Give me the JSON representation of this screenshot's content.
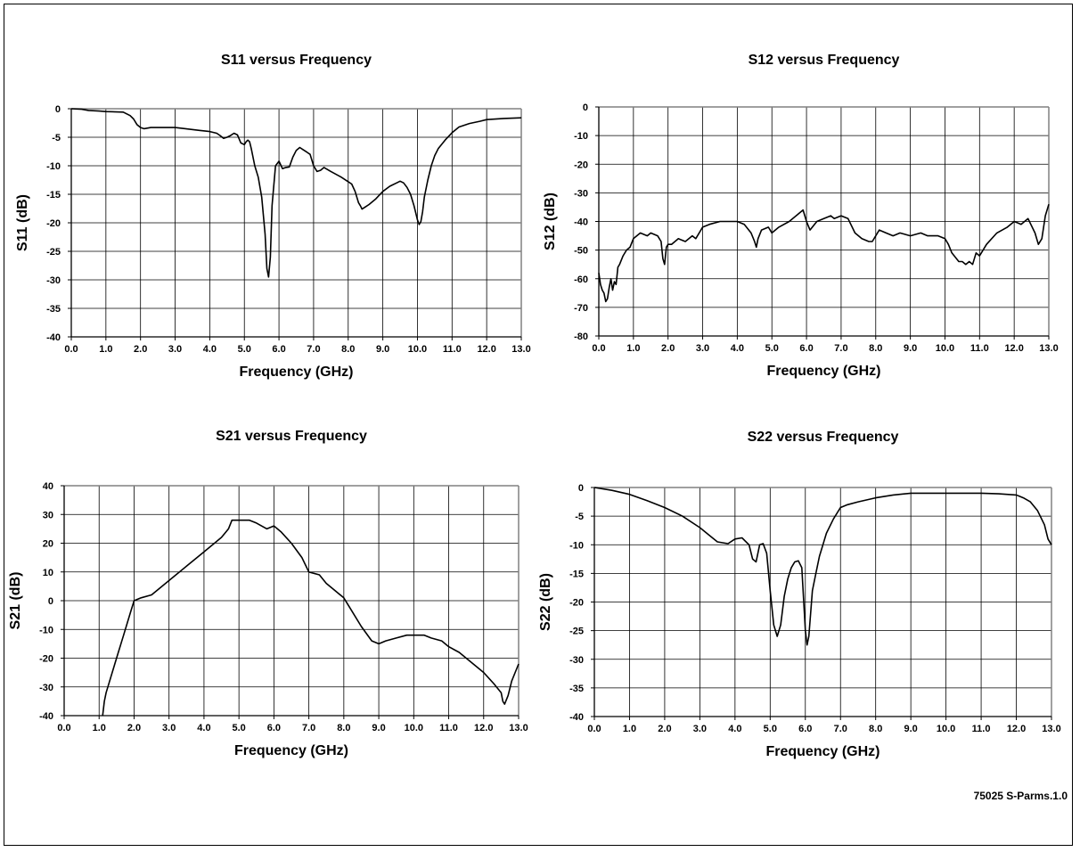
{
  "footer": {
    "part_label": "75025 S-Parms.1.0"
  },
  "style": {
    "line_color": "#000000",
    "grid_color": "#000000",
    "frame_color": "#808080"
  },
  "chart_data": [
    {
      "id": "s11",
      "type": "line",
      "title": "S11 versus Frequency",
      "xlabel": "Frequency (GHz)",
      "ylabel": "S11 (dB)",
      "xlim": [
        0,
        13
      ],
      "ylim": [
        -40,
        0
      ],
      "xticks": [
        "0.0",
        "1.0",
        "2.0",
        "3.0",
        "4.0",
        "5.0",
        "6.0",
        "7.0",
        "8.0",
        "9.0",
        "10.0",
        "11.0",
        "12.0",
        "13.0"
      ],
      "yticks": [
        "0",
        "-5",
        "-10",
        "-15",
        "-20",
        "-25",
        "-30",
        "-35",
        "-40"
      ],
      "grid": true,
      "series": [
        {
          "x": [
            0,
            0.3,
            0.5,
            0.8,
            1.0,
            1.5,
            1.7,
            1.8,
            1.9,
            2.0,
            2.1,
            2.3,
            3.0,
            3.3,
            3.7,
            4.0,
            4.2,
            4.3,
            4.4,
            4.5,
            4.6,
            4.7,
            4.8,
            4.85,
            4.9,
            5.0,
            5.05,
            5.1,
            5.15,
            5.2,
            5.3,
            5.4,
            5.5,
            5.6,
            5.65,
            5.7,
            5.75,
            5.8,
            5.9,
            6.0,
            6.1,
            6.2,
            6.3,
            6.4,
            6.5,
            6.6,
            6.7,
            6.8,
            6.9,
            7.0,
            7.1,
            7.2,
            7.3,
            7.5,
            7.8,
            8.0,
            8.1,
            8.2,
            8.3,
            8.35,
            8.4,
            8.5,
            8.6,
            8.8,
            9.0,
            9.2,
            9.4,
            9.5,
            9.6,
            9.7,
            9.8,
            9.9,
            10.0,
            10.05,
            10.1,
            10.15,
            10.2,
            10.3,
            10.4,
            10.5,
            10.6,
            10.8,
            11.0,
            11.2,
            11.5,
            11.8,
            12.0,
            12.5,
            13.0
          ],
          "y": [
            0,
            -0.1,
            -0.3,
            -0.4,
            -0.5,
            -0.6,
            -1.2,
            -1.8,
            -2.8,
            -3.3,
            -3.5,
            -3.3,
            -3.3,
            -3.5,
            -3.8,
            -4.0,
            -4.3,
            -4.7,
            -5.2,
            -5.0,
            -4.7,
            -4.3,
            -4.6,
            -5.3,
            -6.0,
            -6.3,
            -5.8,
            -5.5,
            -5.8,
            -7.0,
            -10.0,
            -12.0,
            -15.5,
            -22.0,
            -28.0,
            -29.5,
            -26.0,
            -17.0,
            -10.0,
            -9.2,
            -10.5,
            -10.3,
            -10.2,
            -8.5,
            -7.3,
            -6.8,
            -7.2,
            -7.6,
            -8.0,
            -10.0,
            -11.0,
            -10.8,
            -10.3,
            -11.0,
            -12.0,
            -12.8,
            -13.2,
            -14.5,
            -16.5,
            -17.0,
            -17.6,
            -17.2,
            -16.8,
            -15.8,
            -14.5,
            -13.6,
            -13.0,
            -12.7,
            -13.0,
            -13.8,
            -15.0,
            -17.0,
            -19.5,
            -20.3,
            -19.8,
            -18.0,
            -15.5,
            -12.5,
            -10.0,
            -8.2,
            -7.0,
            -5.5,
            -4.2,
            -3.2,
            -2.6,
            -2.2,
            -1.9,
            -1.7,
            -1.6
          ]
        }
      ]
    },
    {
      "id": "s12",
      "type": "line",
      "title": "S12 versus Frequency",
      "xlabel": "Frequency (GHz)",
      "ylabel": "S12 (dB)",
      "xlim": [
        0,
        13
      ],
      "ylim": [
        -80,
        0
      ],
      "xticks": [
        "0.0",
        "1.0",
        "2.0",
        "3.0",
        "4.0",
        "5.0",
        "6.0",
        "7.0",
        "8.0",
        "9.0",
        "10.0",
        "11.0",
        "12.0",
        "13.0"
      ],
      "yticks": [
        "0",
        "-10",
        "-20",
        "-30",
        "-40",
        "-50",
        "-60",
        "-70",
        "-80"
      ],
      "grid": true,
      "series": [
        {
          "x": [
            0,
            0.05,
            0.1,
            0.15,
            0.2,
            0.25,
            0.3,
            0.35,
            0.4,
            0.45,
            0.5,
            0.55,
            0.6,
            0.7,
            0.8,
            0.9,
            1.0,
            1.2,
            1.4,
            1.5,
            1.7,
            1.8,
            1.85,
            1.9,
            1.95,
            2.0,
            2.1,
            2.3,
            2.5,
            2.7,
            2.8,
            3.0,
            3.2,
            3.5,
            3.8,
            4.0,
            4.2,
            4.4,
            4.5,
            4.55,
            4.6,
            4.7,
            4.9,
            5.0,
            5.2,
            5.5,
            5.7,
            5.8,
            5.9,
            6.0,
            6.1,
            6.3,
            6.5,
            6.7,
            6.8,
            7.0,
            7.2,
            7.4,
            7.6,
            7.8,
            7.9,
            8.0,
            8.1,
            8.3,
            8.5,
            8.7,
            9.0,
            9.3,
            9.5,
            9.8,
            10.0,
            10.1,
            10.2,
            10.4,
            10.5,
            10.6,
            10.7,
            10.8,
            10.9,
            11.0,
            11.2,
            11.5,
            11.8,
            12.0,
            12.2,
            12.4,
            12.6,
            12.7,
            12.8,
            12.9,
            13.0
          ],
          "y": [
            -58,
            -62,
            -64,
            -65,
            -68,
            -67,
            -63,
            -60,
            -64,
            -61,
            -62,
            -56,
            -55,
            -52,
            -50,
            -49,
            -46,
            -44,
            -45,
            -44,
            -45,
            -47,
            -53,
            -55,
            -49,
            -48,
            -48,
            -46,
            -47,
            -45,
            -46,
            -42,
            -41,
            -40,
            -40,
            -40,
            -41,
            -44,
            -47,
            -49,
            -46,
            -43,
            -42,
            -44,
            -42,
            -40,
            -38,
            -37,
            -36,
            -40,
            -43,
            -40,
            -39,
            -38,
            -39,
            -38,
            -39,
            -44,
            -46,
            -47,
            -47,
            -45,
            -43,
            -44,
            -45,
            -44,
            -45,
            -44,
            -45,
            -45,
            -46,
            -48,
            -51,
            -54,
            -54,
            -55,
            -54,
            -55,
            -51,
            -52,
            -48,
            -44,
            -42,
            -40,
            -41,
            -39,
            -44,
            -48,
            -46,
            -38,
            -34
          ]
        }
      ]
    },
    {
      "id": "s21",
      "type": "line",
      "title": "S21 versus Frequency",
      "xlabel": "Frequency (GHz)",
      "ylabel": "S21 (dB)",
      "xlim": [
        0,
        13
      ],
      "ylim": [
        -40,
        40
      ],
      "xticks": [
        "0.0",
        "1.0",
        "2.0",
        "3.0",
        "4.0",
        "5.0",
        "6.0",
        "7.0",
        "8.0",
        "9.0",
        "10.0",
        "11.0",
        "12.0",
        "13.0"
      ],
      "yticks": [
        "40",
        "30",
        "20",
        "10",
        "0",
        "-10",
        "-20",
        "-30",
        "-40"
      ],
      "grid": true,
      "series": [
        {
          "x": [
            1.1,
            1.15,
            1.2,
            1.3,
            1.5,
            1.7,
            1.9,
            2.0,
            2.2,
            2.5,
            2.8,
            3.0,
            3.5,
            4.0,
            4.5,
            4.7,
            4.8,
            5.0,
            5.3,
            5.5,
            5.8,
            6.0,
            6.2,
            6.5,
            6.8,
            7.0,
            7.3,
            7.5,
            7.7,
            8.0,
            8.2,
            8.5,
            8.8,
            9.0,
            9.2,
            9.5,
            9.8,
            10.0,
            10.3,
            10.5,
            10.8,
            11.0,
            11.3,
            11.5,
            12.0,
            12.3,
            12.5,
            12.55,
            12.6,
            12.7,
            12.8,
            13.0
          ],
          "y": [
            -40,
            -35,
            -32,
            -28,
            -20,
            -12,
            -4,
            0,
            1,
            2,
            5,
            7,
            12,
            17,
            22,
            25,
            28,
            28,
            28,
            27,
            25,
            26,
            24,
            20,
            15,
            10,
            9,
            6,
            4,
            1,
            -3,
            -9,
            -14,
            -15,
            -14,
            -13,
            -12,
            -12,
            -12,
            -13,
            -14,
            -16,
            -18,
            -20,
            -25,
            -29,
            -32,
            -35,
            -36,
            -33,
            -28,
            -22
          ]
        }
      ]
    },
    {
      "id": "s22",
      "type": "line",
      "title": "S22 versus Frequency",
      "xlabel": "Frequency (GHz)",
      "ylabel": "S22 (dB)",
      "xlim": [
        0,
        13
      ],
      "ylim": [
        -40,
        0
      ],
      "xticks": [
        "0.0",
        "1.0",
        "2.0",
        "3.0",
        "4.0",
        "5.0",
        "6.0",
        "7.0",
        "8.0",
        "9.0",
        "10.0",
        "11.0",
        "12.0",
        "13.0"
      ],
      "yticks": [
        "0",
        "-5",
        "-10",
        "-15",
        "-20",
        "-25",
        "-30",
        "-35",
        "-40"
      ],
      "grid": true,
      "series": [
        {
          "x": [
            0,
            0.5,
            1.0,
            1.5,
            2.0,
            2.5,
            3.0,
            3.3,
            3.5,
            3.8,
            4.0,
            4.2,
            4.4,
            4.5,
            4.6,
            4.7,
            4.8,
            4.9,
            5.0,
            5.1,
            5.2,
            5.3,
            5.4,
            5.5,
            5.6,
            5.7,
            5.8,
            5.9,
            6.0,
            6.05,
            6.1,
            6.2,
            6.3,
            6.4,
            6.5,
            6.6,
            6.8,
            7.0,
            7.2,
            7.5,
            8.0,
            8.5,
            9.0,
            10.0,
            11.0,
            11.5,
            12.0,
            12.2,
            12.4,
            12.6,
            12.8,
            12.9,
            13.0
          ],
          "y": [
            0,
            -0.5,
            -1.2,
            -2.3,
            -3.5,
            -5.0,
            -7.0,
            -8.5,
            -9.5,
            -9.8,
            -9.0,
            -8.8,
            -10.0,
            -12.5,
            -13.0,
            -10.0,
            -9.8,
            -11.5,
            -18.0,
            -24.0,
            -26.0,
            -24.0,
            -19.0,
            -16.0,
            -14.0,
            -13.0,
            -12.8,
            -14.0,
            -25.0,
            -27.5,
            -26.0,
            -18.0,
            -15.0,
            -12.0,
            -10.0,
            -8.0,
            -5.5,
            -3.5,
            -3.0,
            -2.5,
            -1.8,
            -1.3,
            -1.0,
            -1.0,
            -1.0,
            -1.1,
            -1.3,
            -1.8,
            -2.5,
            -4.0,
            -6.5,
            -9.0,
            -10.0
          ]
        }
      ]
    }
  ]
}
